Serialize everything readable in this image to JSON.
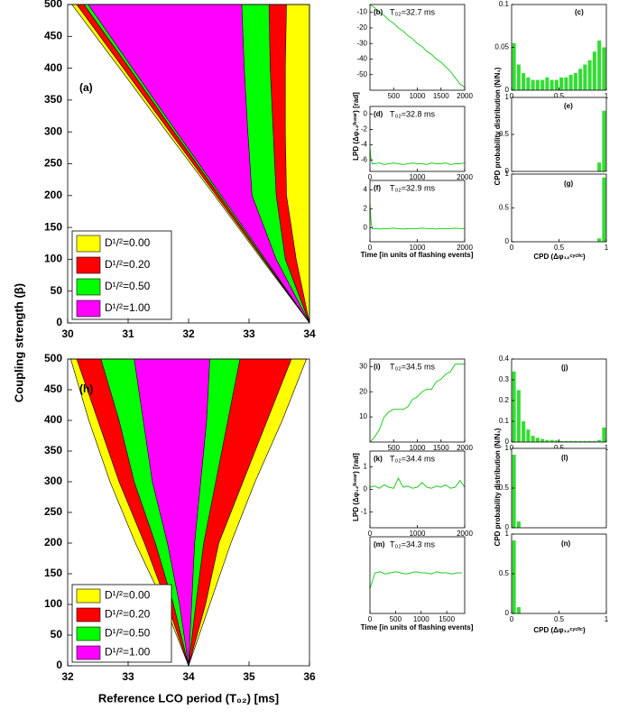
{
  "chart_data": [
    {
      "type": "tongue",
      "label": "(a)",
      "ylabel": "Coupling strength (β)",
      "legend": "lower left",
      "xlim": [
        30,
        34
      ],
      "xticks": [
        30,
        31,
        32,
        33,
        34
      ],
      "ylim": [
        0,
        500
      ],
      "yticks": [
        0,
        50,
        100,
        150,
        200,
        250,
        300,
        350,
        400,
        450,
        500
      ],
      "y": [
        0,
        100,
        200,
        300,
        400,
        500
      ],
      "series": [
        {
          "name": "D¹/²=0.00",
          "color": "#ffff00",
          "left": [
            34,
            33.21,
            32.43,
            31.64,
            30.86,
            30.07
          ],
          "right": [
            34,
            34,
            34,
            34,
            34,
            34
          ]
        },
        {
          "name": "D¹/²=0.20",
          "color": "#ff0000",
          "left": [
            34,
            33.23,
            32.46,
            31.69,
            30.92,
            30.15
          ],
          "right": [
            34,
            33.78,
            33.62,
            33.6,
            33.6,
            33.62
          ]
        },
        {
          "name": "D¹/²=0.50",
          "color": "#00ff00",
          "left": [
            34,
            33.25,
            32.51,
            31.76,
            31.02,
            30.27
          ],
          "right": [
            34,
            33.6,
            33.45,
            33.4,
            33.35,
            33.33
          ]
        },
        {
          "name": "D¹/²=1.00",
          "color": "#ff00ff",
          "left": [
            34,
            33.27,
            32.54,
            31.8,
            31.07,
            30.34
          ],
          "right": [
            34,
            33.45,
            33.05,
            32.98,
            32.92,
            32.88
          ]
        }
      ]
    },
    {
      "type": "tongue",
      "label": "(h)",
      "xlabel": "Reference LCO period (T₀₂) [ms]",
      "legend": "lower left",
      "xlim": [
        32,
        36
      ],
      "xticks": [
        32,
        33,
        34,
        35,
        36
      ],
      "ylim": [
        0,
        500
      ],
      "yticks": [
        0,
        50,
        100,
        150,
        200,
        250,
        300,
        350,
        400,
        450,
        500
      ],
      "y": [
        0,
        100,
        200,
        300,
        400,
        500
      ],
      "series": [
        {
          "name": "D¹/²=0.00",
          "color": "#ffff00",
          "left": [
            34,
            33.6,
            33.12,
            32.7,
            32.35,
            32.05
          ],
          "right": [
            34,
            34.35,
            34.7,
            35.1,
            35.55,
            35.95
          ]
        },
        {
          "name": "D¹/²=0.20",
          "color": "#ff0000",
          "left": [
            34,
            33.65,
            33.27,
            32.85,
            32.5,
            32.15
          ],
          "right": [
            34,
            34.28,
            34.5,
            34.9,
            35.3,
            35.7
          ]
        },
        {
          "name": "D¹/²=0.50",
          "color": "#00ff00",
          "left": [
            34,
            33.75,
            33.45,
            33.1,
            32.85,
            32.55
          ],
          "right": [
            34,
            34.12,
            34.25,
            34.45,
            34.65,
            34.85
          ]
        },
        {
          "name": "D¹/²=1.00",
          "color": "#ff00ff",
          "left": [
            34,
            33.85,
            33.65,
            33.4,
            33.25,
            33.1
          ],
          "right": [
            34,
            34.05,
            34.1,
            34.2,
            34.3,
            34.35
          ]
        }
      ]
    },
    {
      "type": "line",
      "label": "(b)",
      "annotation": "T₀₂=32.7 ms",
      "color": "#22cc22",
      "xlim": [
        0,
        2000
      ],
      "xticks": [
        500,
        1000,
        1500,
        2000
      ],
      "ylim": [
        -60,
        -5
      ],
      "yticks": [
        -10,
        -20,
        -30,
        -40,
        -50
      ],
      "x": [
        0,
        100,
        200,
        300,
        400,
        500,
        600,
        700,
        800,
        900,
        1000,
        1100,
        1200,
        1300,
        1400,
        1500,
        1600,
        1700,
        1800,
        1900,
        2000
      ],
      "values": [
        -5,
        -7,
        -10,
        -12,
        -15,
        -17,
        -20,
        -22,
        -25,
        -27,
        -30,
        -32,
        -35,
        -37,
        -40,
        -42,
        -45,
        -48,
        -52,
        -56,
        -58
      ]
    },
    {
      "type": "line",
      "label": "(d)",
      "annotation": "T₀₂=32.8 ms",
      "ylabel": "LPD (Δφ₁₂ˡⁱⁿᵉᵃʳ) [rad]",
      "color": "#22cc22",
      "xlim": [
        0,
        2000
      ],
      "xticks": [
        0,
        1000,
        2000
      ],
      "ylim": [
        -7.5,
        1
      ],
      "yticks": [
        0,
        -2,
        -4,
        -6
      ],
      "x": [
        0,
        25,
        50,
        100,
        200,
        300,
        400,
        500,
        600,
        700,
        800,
        900,
        1000,
        1100,
        1200,
        1300,
        1400,
        1500,
        1600,
        1700,
        1800,
        1900,
        2000
      ],
      "values": [
        -4.5,
        -6,
        -6.5,
        -6.5,
        -6.4,
        -6.6,
        -6.5,
        -6.4,
        -6.5,
        -6.6,
        -6.5,
        -6.4,
        -6.5,
        -6.5,
        -6.6,
        -6.4,
        -6.5,
        -6.5,
        -6.4,
        -6.6,
        -6.5,
        -6.5,
        -6.4
      ]
    },
    {
      "type": "line",
      "label": "(f)",
      "annotation": "T₀₂=32.9 ms",
      "xlabel": "Time [in units of flashing events]",
      "color": "#22cc22",
      "xlim": [
        0,
        2000
      ],
      "xticks": [
        0,
        1000,
        2000
      ],
      "ylim": [
        -1.5,
        5
      ],
      "yticks": [
        0,
        2,
        4
      ],
      "x": [
        0,
        25,
        50,
        100,
        200,
        300,
        400,
        500,
        600,
        700,
        800,
        900,
        1000,
        1100,
        1200,
        1300,
        1400,
        1500,
        1600,
        1700,
        1800,
        1900,
        2000
      ],
      "values": [
        2.5,
        0.5,
        -0.1,
        -0.1,
        -0.15,
        -0.1,
        -0.1,
        -0.05,
        -0.1,
        -0.15,
        -0.1,
        -0.1,
        -0.1,
        -0.05,
        -0.1,
        -0.1,
        -0.15,
        -0.1,
        -0.1,
        -0.1,
        -0.05,
        -0.1,
        -0.1
      ]
    },
    {
      "type": "histogram",
      "label": "(c)",
      "color": "#33dd33",
      "xlim": [
        0,
        1
      ],
      "xticks": [
        0,
        0.5,
        1
      ],
      "ylim": [
        0,
        0.1
      ],
      "yticks": [
        0,
        0.05,
        0.1
      ],
      "bins": [
        0,
        0.05,
        0.1,
        0.15,
        0.2,
        0.25,
        0.3,
        0.35,
        0.4,
        0.45,
        0.5,
        0.55,
        0.6,
        0.65,
        0.7,
        0.75,
        0.8,
        0.85,
        0.9,
        0.95,
        1
      ],
      "values": [
        0.055,
        0.03,
        0.02,
        0.015,
        0.012,
        0.012,
        0.012,
        0.015,
        0.012,
        0.012,
        0.015,
        0.015,
        0.018,
        0.02,
        0.025,
        0.03,
        0.035,
        0.045,
        0.058,
        0.05
      ]
    },
    {
      "type": "histogram",
      "label": "(e)",
      "ylabel": "CPD probability distribution (N/N₁)",
      "color": "#33dd33",
      "xlim": [
        0,
        1
      ],
      "ylim": [
        0,
        1
      ],
      "yticks": [
        0,
        0.5,
        1
      ],
      "bins": [
        0,
        0.05,
        0.1,
        0.15,
        0.2,
        0.25,
        0.3,
        0.35,
        0.4,
        0.45,
        0.5,
        0.55,
        0.6,
        0.65,
        0.7,
        0.75,
        0.8,
        0.85,
        0.9,
        0.95,
        1
      ],
      "values": [
        0,
        0,
        0,
        0,
        0,
        0,
        0,
        0,
        0,
        0,
        0,
        0,
        0,
        0,
        0,
        0,
        0,
        0,
        0.12,
        0.82
      ]
    },
    {
      "type": "histogram",
      "label": "(g)",
      "xlabel": "CPD (Δφ₁₂ᶜʸᶜˡⁱᶜ)",
      "color": "#33dd33",
      "xlim": [
        0,
        1
      ],
      "xticks": [
        0,
        0.5,
        1
      ],
      "ylim": [
        0,
        1
      ],
      "yticks": [
        0,
        0.5,
        1
      ],
      "bins": [
        0,
        0.05,
        0.1,
        0.15,
        0.2,
        0.25,
        0.3,
        0.35,
        0.4,
        0.45,
        0.5,
        0.55,
        0.6,
        0.65,
        0.7,
        0.75,
        0.8,
        0.85,
        0.9,
        0.95,
        1
      ],
      "values": [
        0,
        0,
        0,
        0,
        0,
        0,
        0,
        0,
        0,
        0,
        0,
        0,
        0,
        0,
        0,
        0,
        0,
        0,
        0.05,
        0.95
      ]
    },
    {
      "type": "line",
      "label": "(i)",
      "annotation": "T₀₂=34.5 ms",
      "color": "#22cc22",
      "xlim": [
        0,
        2000
      ],
      "xticks": [
        500,
        1000,
        1500,
        2000
      ],
      "ylim": [
        0,
        33
      ],
      "yticks": [
        10,
        20,
        30
      ],
      "x": [
        0,
        100,
        200,
        300,
        400,
        500,
        600,
        700,
        800,
        900,
        1000,
        1100,
        1200,
        1300,
        1400,
        1500,
        1600,
        1700,
        1800,
        1900,
        2000
      ],
      "values": [
        0,
        2,
        5,
        10,
        12,
        13,
        13,
        13,
        14,
        17,
        18,
        20,
        21,
        21,
        24,
        25,
        27,
        28,
        31,
        31,
        31
      ]
    },
    {
      "type": "line",
      "label": "(k)",
      "annotation": "T₀₂=34.4 ms",
      "ylabel": "LPD (Δφ₁₂ˡⁱⁿᵉᵃʳ) [rad]",
      "color": "#22cc22",
      "xlim": [
        0,
        2000
      ],
      "xticks": [
        0,
        1000,
        2000
      ],
      "ylim": [
        -1.7,
        1.7
      ],
      "yticks": [
        -1,
        0,
        1
      ],
      "x": [
        0,
        100,
        200,
        300,
        400,
        500,
        600,
        700,
        800,
        900,
        1000,
        1100,
        1200,
        1300,
        1400,
        1500,
        1600,
        1700,
        1800,
        1900,
        2000
      ],
      "values": [
        0.1,
        0.15,
        0.05,
        0.2,
        0.1,
        0.05,
        0.5,
        0.1,
        0.15,
        0.05,
        0.1,
        0.3,
        0.1,
        0.05,
        0.15,
        0.1,
        0.2,
        0.05,
        0.1,
        0.4,
        0.1
      ]
    },
    {
      "type": "line",
      "label": "(m)",
      "annotation": "T₀₂=34.3 ms",
      "xlabel": "Time [in units of flashing events]",
      "color": "#22cc22",
      "xlim": [
        0,
        1850
      ],
      "xticks": [
        0,
        500,
        1000,
        1500
      ],
      "ylim": [
        -1.7,
        1.7
      ],
      "x": [
        0,
        100,
        200,
        300,
        400,
        500,
        600,
        700,
        800,
        900,
        1000,
        1100,
        1200,
        1300,
        1400,
        1500,
        1600,
        1700,
        1800
      ],
      "values": [
        -0.6,
        0.1,
        0.15,
        0.05,
        0.1,
        0.15,
        0.1,
        0.05,
        0.1,
        0.15,
        0.1,
        0.1,
        0.05,
        0.15,
        0.1,
        0.1,
        0.05,
        0.1,
        0.1
      ]
    },
    {
      "type": "histogram",
      "label": "(j)",
      "color": "#33dd33",
      "xlim": [
        0,
        1
      ],
      "xticks": [
        0,
        0.5,
        1
      ],
      "ylim": [
        0,
        0.4
      ],
      "yticks": [
        0,
        0.1,
        0.2,
        0.3,
        0.4
      ],
      "bins": [
        0,
        0.05,
        0.1,
        0.15,
        0.2,
        0.25,
        0.3,
        0.35,
        0.4,
        0.45,
        0.5,
        0.55,
        0.6,
        0.65,
        0.7,
        0.75,
        0.8,
        0.85,
        0.9,
        0.95,
        1
      ],
      "values": [
        0.34,
        0.25,
        0.1,
        0.06,
        0.03,
        0.02,
        0.015,
        0.01,
        0.01,
        0.008,
        0.005,
        0.005,
        0.005,
        0.005,
        0.005,
        0.005,
        0.005,
        0.005,
        0.01,
        0.07
      ]
    },
    {
      "type": "histogram",
      "label": "(l)",
      "ylabel": "CPD probability distribution (N/N₁)",
      "color": "#33dd33",
      "xlim": [
        0,
        1
      ],
      "ylim": [
        0,
        1
      ],
      "yticks": [
        0,
        0.5,
        1
      ],
      "bins": [
        0,
        0.05,
        0.1,
        0.15,
        0.2,
        0.25,
        0.3,
        0.35,
        0.4,
        0.45,
        0.5,
        0.55,
        0.6,
        0.65,
        0.7,
        0.75,
        0.8,
        0.85,
        0.9,
        0.95,
        1
      ],
      "values": [
        0.92,
        0.08,
        0,
        0,
        0,
        0,
        0,
        0,
        0,
        0,
        0,
        0,
        0,
        0,
        0,
        0,
        0,
        0,
        0,
        0
      ]
    },
    {
      "type": "histogram",
      "label": "(n)",
      "xlabel": "CPD (Δφ₁₂ᶜʸᶜˡⁱᶜ)",
      "color": "#33dd33",
      "xlim": [
        0,
        1
      ],
      "xticks": [
        0,
        0.5,
        1
      ],
      "ylim": [
        0,
        1
      ],
      "yticks": [
        0,
        0.5,
        1
      ],
      "bins": [
        0,
        0.05,
        0.1,
        0.15,
        0.2,
        0.25,
        0.3,
        0.35,
        0.4,
        0.45,
        0.5,
        0.55,
        0.6,
        0.65,
        0.7,
        0.75,
        0.8,
        0.85,
        0.9,
        0.95,
        1
      ],
      "values": [
        0.92,
        0.08,
        0,
        0,
        0,
        0,
        0,
        0,
        0,
        0,
        0,
        0,
        0,
        0,
        0,
        0,
        0,
        0,
        0,
        0
      ]
    }
  ]
}
